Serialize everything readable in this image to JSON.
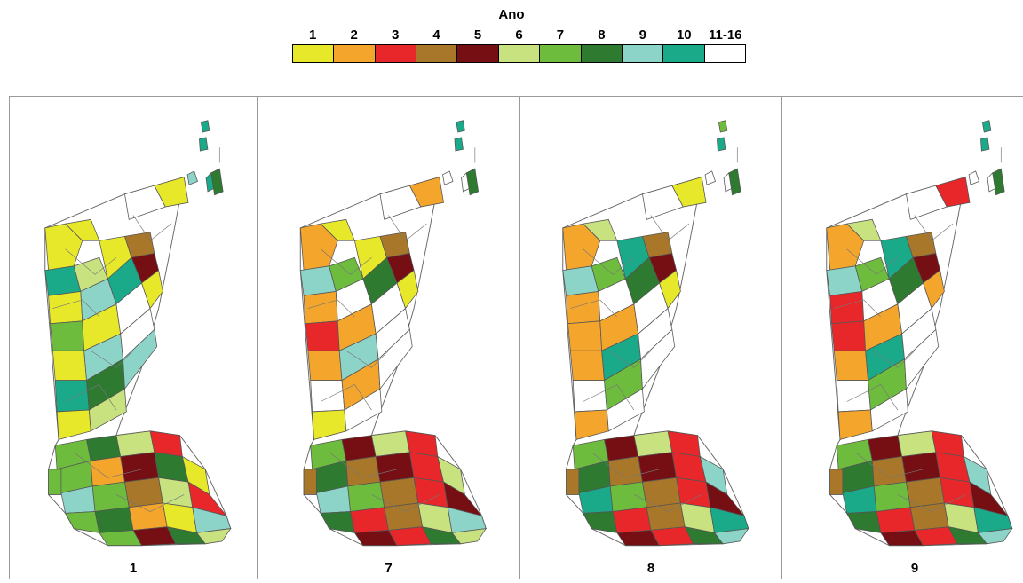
{
  "legend": {
    "title": "Ano",
    "classes": [
      {
        "label": "1",
        "color": "#e8e82a"
      },
      {
        "label": "2",
        "color": "#f4a52c"
      },
      {
        "label": "3",
        "color": "#e8272a"
      },
      {
        "label": "4",
        "color": "#a8772a"
      },
      {
        "label": "5",
        "color": "#750f14"
      },
      {
        "label": "6",
        "color": "#c7e27f"
      },
      {
        "label": "7",
        "color": "#6ebc3d"
      },
      {
        "label": "8",
        "color": "#2e7a30"
      },
      {
        "label": "9",
        "color": "#8dd4c8"
      },
      {
        "label": "10",
        "color": "#1aaa8a"
      },
      {
        "label": "11-16",
        "color": "#ffffff"
      }
    ]
  },
  "panels": [
    {
      "label": "1",
      "upper": [
        "#e8e82a",
        "#e8e82a",
        "#1aaa8a",
        "#c7e27f",
        "#e8e82a",
        "#8dd4c8",
        "#e8e82a",
        "#1aaa8a",
        "#6ebc3d",
        "#e8e82a",
        "#a8772a",
        "#750f14",
        "#e8e82a",
        "#8dd4c8",
        "#ffffff",
        "#e8e82a",
        "#1aaa8a",
        "#2e7a30",
        "#ffffff",
        "#e8e82a",
        "#c7e27f",
        "#8dd4c8",
        "#ffffff",
        "#e8e82a"
      ],
      "lower": [
        "#6ebc3d",
        "#2e7a30",
        "#c7e27f",
        "#e8272a",
        "#6ebc3d",
        "#f4a52c",
        "#750f14",
        "#2e7a30",
        "#e8e82a",
        "#8dd4c8",
        "#6ebc3d",
        "#a8772a",
        "#c7e27f",
        "#e8272a",
        "#6ebc3d",
        "#2e7a30",
        "#f4a52c",
        "#e8e82a",
        "#8dd4c8",
        "#6ebc3d",
        "#750f14",
        "#2e7a30",
        "#c7e27f",
        "#6ebc3d"
      ],
      "islands": [
        "#1aaa8a",
        "#1aaa8a",
        "#8dd4c8",
        "#1aaa8a",
        "#2e7a30"
      ]
    },
    {
      "label": "7",
      "upper": [
        "#f4a52c",
        "#e8e82a",
        "#8dd4c8",
        "#6ebc3d",
        "#f4a52c",
        "#ffffff",
        "#e8e82a",
        "#2e7a30",
        "#e8272a",
        "#f4a52c",
        "#a8772a",
        "#750f14",
        "#f4a52c",
        "#8dd4c8",
        "#ffffff",
        "#e8e82a",
        "#ffffff",
        "#f4a52c",
        "#ffffff",
        "#e8e82a",
        "#ffffff",
        "#ffffff",
        "#ffffff",
        "#f4a52c"
      ],
      "lower": [
        "#6ebc3d",
        "#750f14",
        "#c7e27f",
        "#e8272a",
        "#2e7a30",
        "#a8772a",
        "#750f14",
        "#e8272a",
        "#c7e27f",
        "#8dd4c8",
        "#6ebc3d",
        "#a8772a",
        "#e8272a",
        "#750f14",
        "#2e7a30",
        "#e8272a",
        "#a8772a",
        "#c7e27f",
        "#8dd4c8",
        "#750f14",
        "#e8272a",
        "#2e7a30",
        "#c7e27f",
        "#a8772a"
      ],
      "islands": [
        "#1aaa8a",
        "#1aaa8a",
        "#ffffff",
        "#ffffff",
        "#2e7a30"
      ]
    },
    {
      "label": "8",
      "upper": [
        "#f4a52c",
        "#c7e27f",
        "#8dd4c8",
        "#6ebc3d",
        "#f4a52c",
        "#ffffff",
        "#1aaa8a",
        "#2e7a30",
        "#f4a52c",
        "#f4a52c",
        "#a8772a",
        "#750f14",
        "#f4a52c",
        "#1aaa8a",
        "#ffffff",
        "#e8e82a",
        "#ffffff",
        "#6ebc3d",
        "#ffffff",
        "#f4a52c",
        "#ffffff",
        "#ffffff",
        "#ffffff",
        "#e8e82a"
      ],
      "lower": [
        "#6ebc3d",
        "#750f14",
        "#c7e27f",
        "#e8272a",
        "#2e7a30",
        "#a8772a",
        "#750f14",
        "#e8272a",
        "#8dd4c8",
        "#1aaa8a",
        "#6ebc3d",
        "#a8772a",
        "#e8272a",
        "#750f14",
        "#2e7a30",
        "#e8272a",
        "#a8772a",
        "#c7e27f",
        "#1aaa8a",
        "#750f14",
        "#e8272a",
        "#2e7a30",
        "#8dd4c8",
        "#a8772a"
      ],
      "islands": [
        "#6ebc3d",
        "#1aaa8a",
        "#ffffff",
        "#ffffff",
        "#2e7a30"
      ]
    },
    {
      "label": "9",
      "upper": [
        "#f4a52c",
        "#c7e27f",
        "#8dd4c8",
        "#6ebc3d",
        "#e8272a",
        "#ffffff",
        "#1aaa8a",
        "#2e7a30",
        "#e8272a",
        "#f4a52c",
        "#a8772a",
        "#750f14",
        "#f4a52c",
        "#1aaa8a",
        "#ffffff",
        "#f4a52c",
        "#ffffff",
        "#6ebc3d",
        "#ffffff",
        "#f4a52c",
        "#ffffff",
        "#ffffff",
        "#ffffff",
        "#e8272a"
      ],
      "lower": [
        "#6ebc3d",
        "#750f14",
        "#c7e27f",
        "#e8272a",
        "#2e7a30",
        "#a8772a",
        "#750f14",
        "#e8272a",
        "#8dd4c8",
        "#1aaa8a",
        "#6ebc3d",
        "#a8772a",
        "#e8272a",
        "#750f14",
        "#2e7a30",
        "#e8272a",
        "#a8772a",
        "#c7e27f",
        "#1aaa8a",
        "#750f14",
        "#e8272a",
        "#2e7a30",
        "#8dd4c8",
        "#a8772a"
      ],
      "islands": [
        "#1aaa8a",
        "#1aaa8a",
        "#ffffff",
        "#ffffff",
        "#2e7a30"
      ]
    }
  ]
}
